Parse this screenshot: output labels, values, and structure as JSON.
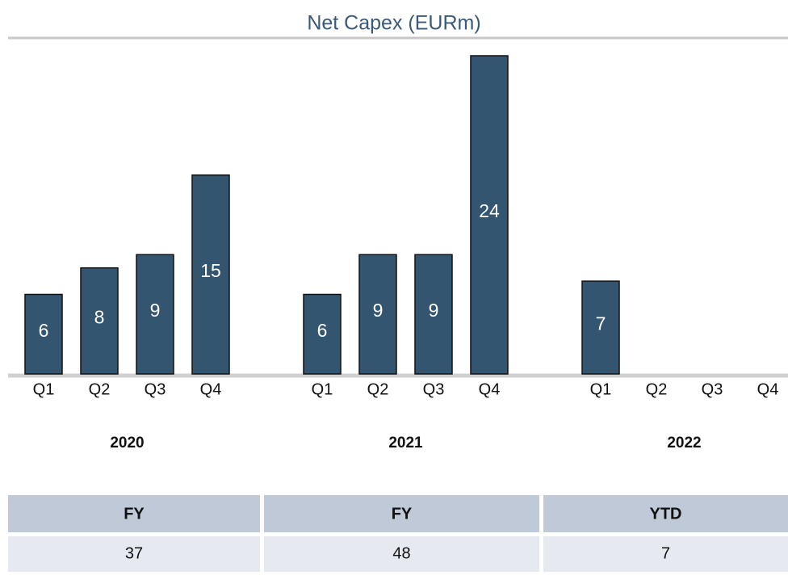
{
  "chart_data": {
    "type": "bar",
    "title": "Net Capex (EURm)",
    "color": "#34556f",
    "groups": [
      {
        "name": "2020",
        "categories": [
          "Q1",
          "Q2",
          "Q3",
          "Q4"
        ],
        "values": [
          6,
          8,
          9,
          15
        ]
      },
      {
        "name": "2021",
        "categories": [
          "Q1",
          "Q2",
          "Q3",
          "Q4"
        ],
        "values": [
          6,
          9,
          9,
          24
        ]
      },
      {
        "name": "2022",
        "categories": [
          "Q1",
          "Q2",
          "Q3",
          "Q4"
        ],
        "values": [
          7,
          null,
          null,
          null
        ]
      }
    ]
  },
  "table": {
    "header": [
      "FY",
      "FY",
      "YTD"
    ],
    "rows": [
      [
        "37",
        "48",
        "7"
      ]
    ]
  }
}
